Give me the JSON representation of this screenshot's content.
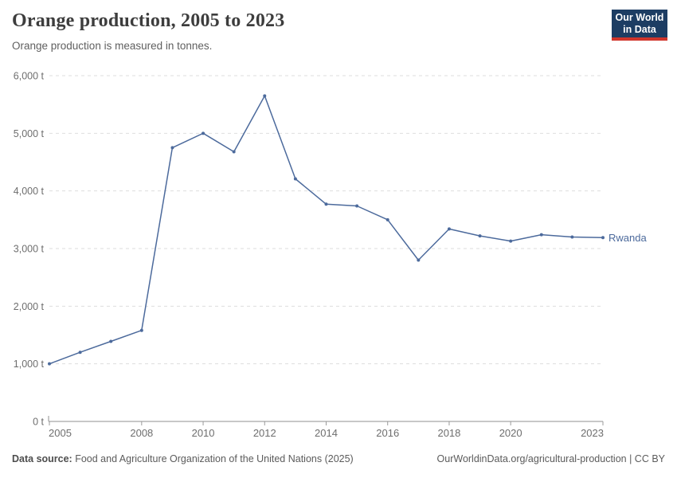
{
  "header": {
    "title": "Orange production, 2005 to 2023",
    "subtitle": "Orange production is measured in tonnes.",
    "logo": {
      "line1": "Our World",
      "line2": "in Data"
    }
  },
  "chart_data": {
    "type": "line",
    "title": "Orange production, 2005 to 2023",
    "unit": "tonnes",
    "xlabel": "",
    "ylabel": "",
    "x": [
      2005,
      2006,
      2007,
      2008,
      2009,
      2010,
      2011,
      2012,
      2013,
      2014,
      2015,
      2016,
      2017,
      2018,
      2019,
      2020,
      2021,
      2022,
      2023
    ],
    "series": [
      {
        "name": "Rwanda",
        "color": "#4C6A9C",
        "values": [
          1000,
          1200,
          1390,
          1580,
          4750,
          5000,
          4680,
          5650,
          4210,
          3770,
          3740,
          3500,
          2800,
          3340,
          3220,
          3130,
          3240,
          3200,
          3190
        ]
      }
    ],
    "ylim": [
      0,
      6000
    ],
    "yticks": [
      0,
      1000,
      2000,
      3000,
      4000,
      5000,
      6000
    ],
    "ytick_labels": [
      "0 t",
      "1,000 t",
      "2,000 t",
      "3,000 t",
      "4,000 t",
      "5,000 t",
      "6,000 t"
    ],
    "xticks": [
      2005,
      2008,
      2010,
      2012,
      2014,
      2016,
      2018,
      2020,
      2023
    ],
    "grid": "horizontal-dashed",
    "legend_position": "line-end-label"
  },
  "footer": {
    "datasource_label": "Data source:",
    "datasource_text": " Food and Agriculture Organization of the United Nations (2025)",
    "credit": "OurWorldinData.org/agricultural-production | CC BY"
  },
  "colors": {
    "line": "#4C6A9C",
    "grid": "#DEDEDE",
    "axis": "#8F8F8F",
    "tick": "#9B9B9B",
    "tick_label": "#6E6E6E",
    "logo_bg": "#1D3D63",
    "logo_accent": "#D0352B"
  }
}
